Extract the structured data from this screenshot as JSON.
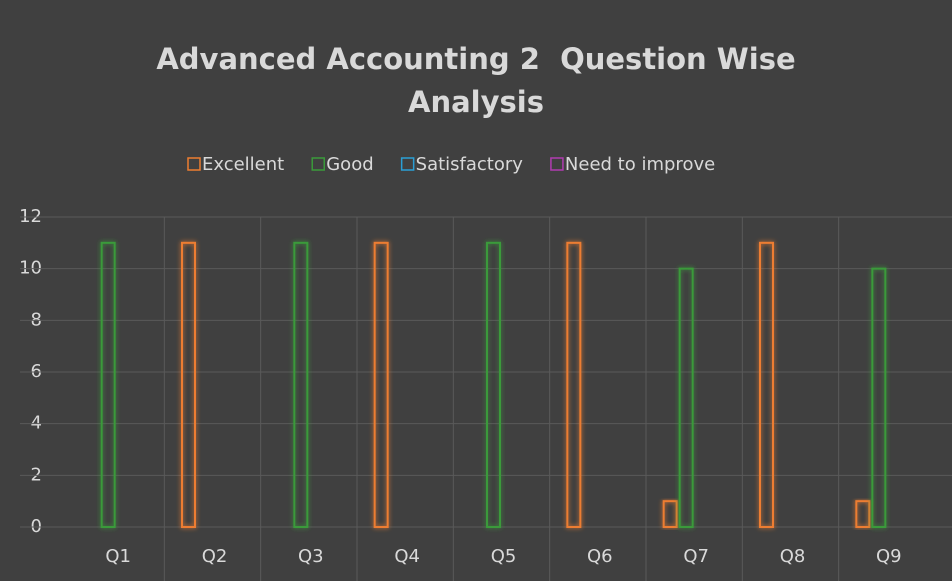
{
  "chart_data": {
    "type": "bar",
    "title": "Advanced Accounting 2  Question Wise Analysis",
    "categories": [
      "Q1",
      "Q2",
      "Q3",
      "Q4",
      "Q5",
      "Q6",
      "Q7",
      "Q8",
      "Q9"
    ],
    "series": [
      {
        "name": "Excellent",
        "color": "#ed7d31",
        "values": [
          0,
          11,
          0,
          11,
          0,
          11,
          1,
          11,
          1
        ]
      },
      {
        "name": "Good",
        "color": "#3a9a3a",
        "values": [
          11,
          0,
          11,
          0,
          11,
          0,
          10,
          0,
          10
        ]
      },
      {
        "name": "Satisfactory",
        "color": "#2a9fd6",
        "values": [
          0,
          0,
          0,
          0,
          0,
          0,
          0,
          0,
          0
        ]
      },
      {
        "name": "Need to improve",
        "color": "#b03cb0",
        "values": [
          0,
          0,
          0,
          0,
          0,
          0,
          0,
          0,
          0
        ]
      }
    ],
    "ylim": [
      0,
      12
    ],
    "yticks": [
      0,
      2,
      4,
      6,
      8,
      10,
      12
    ],
    "grid": true,
    "legend": "top"
  }
}
